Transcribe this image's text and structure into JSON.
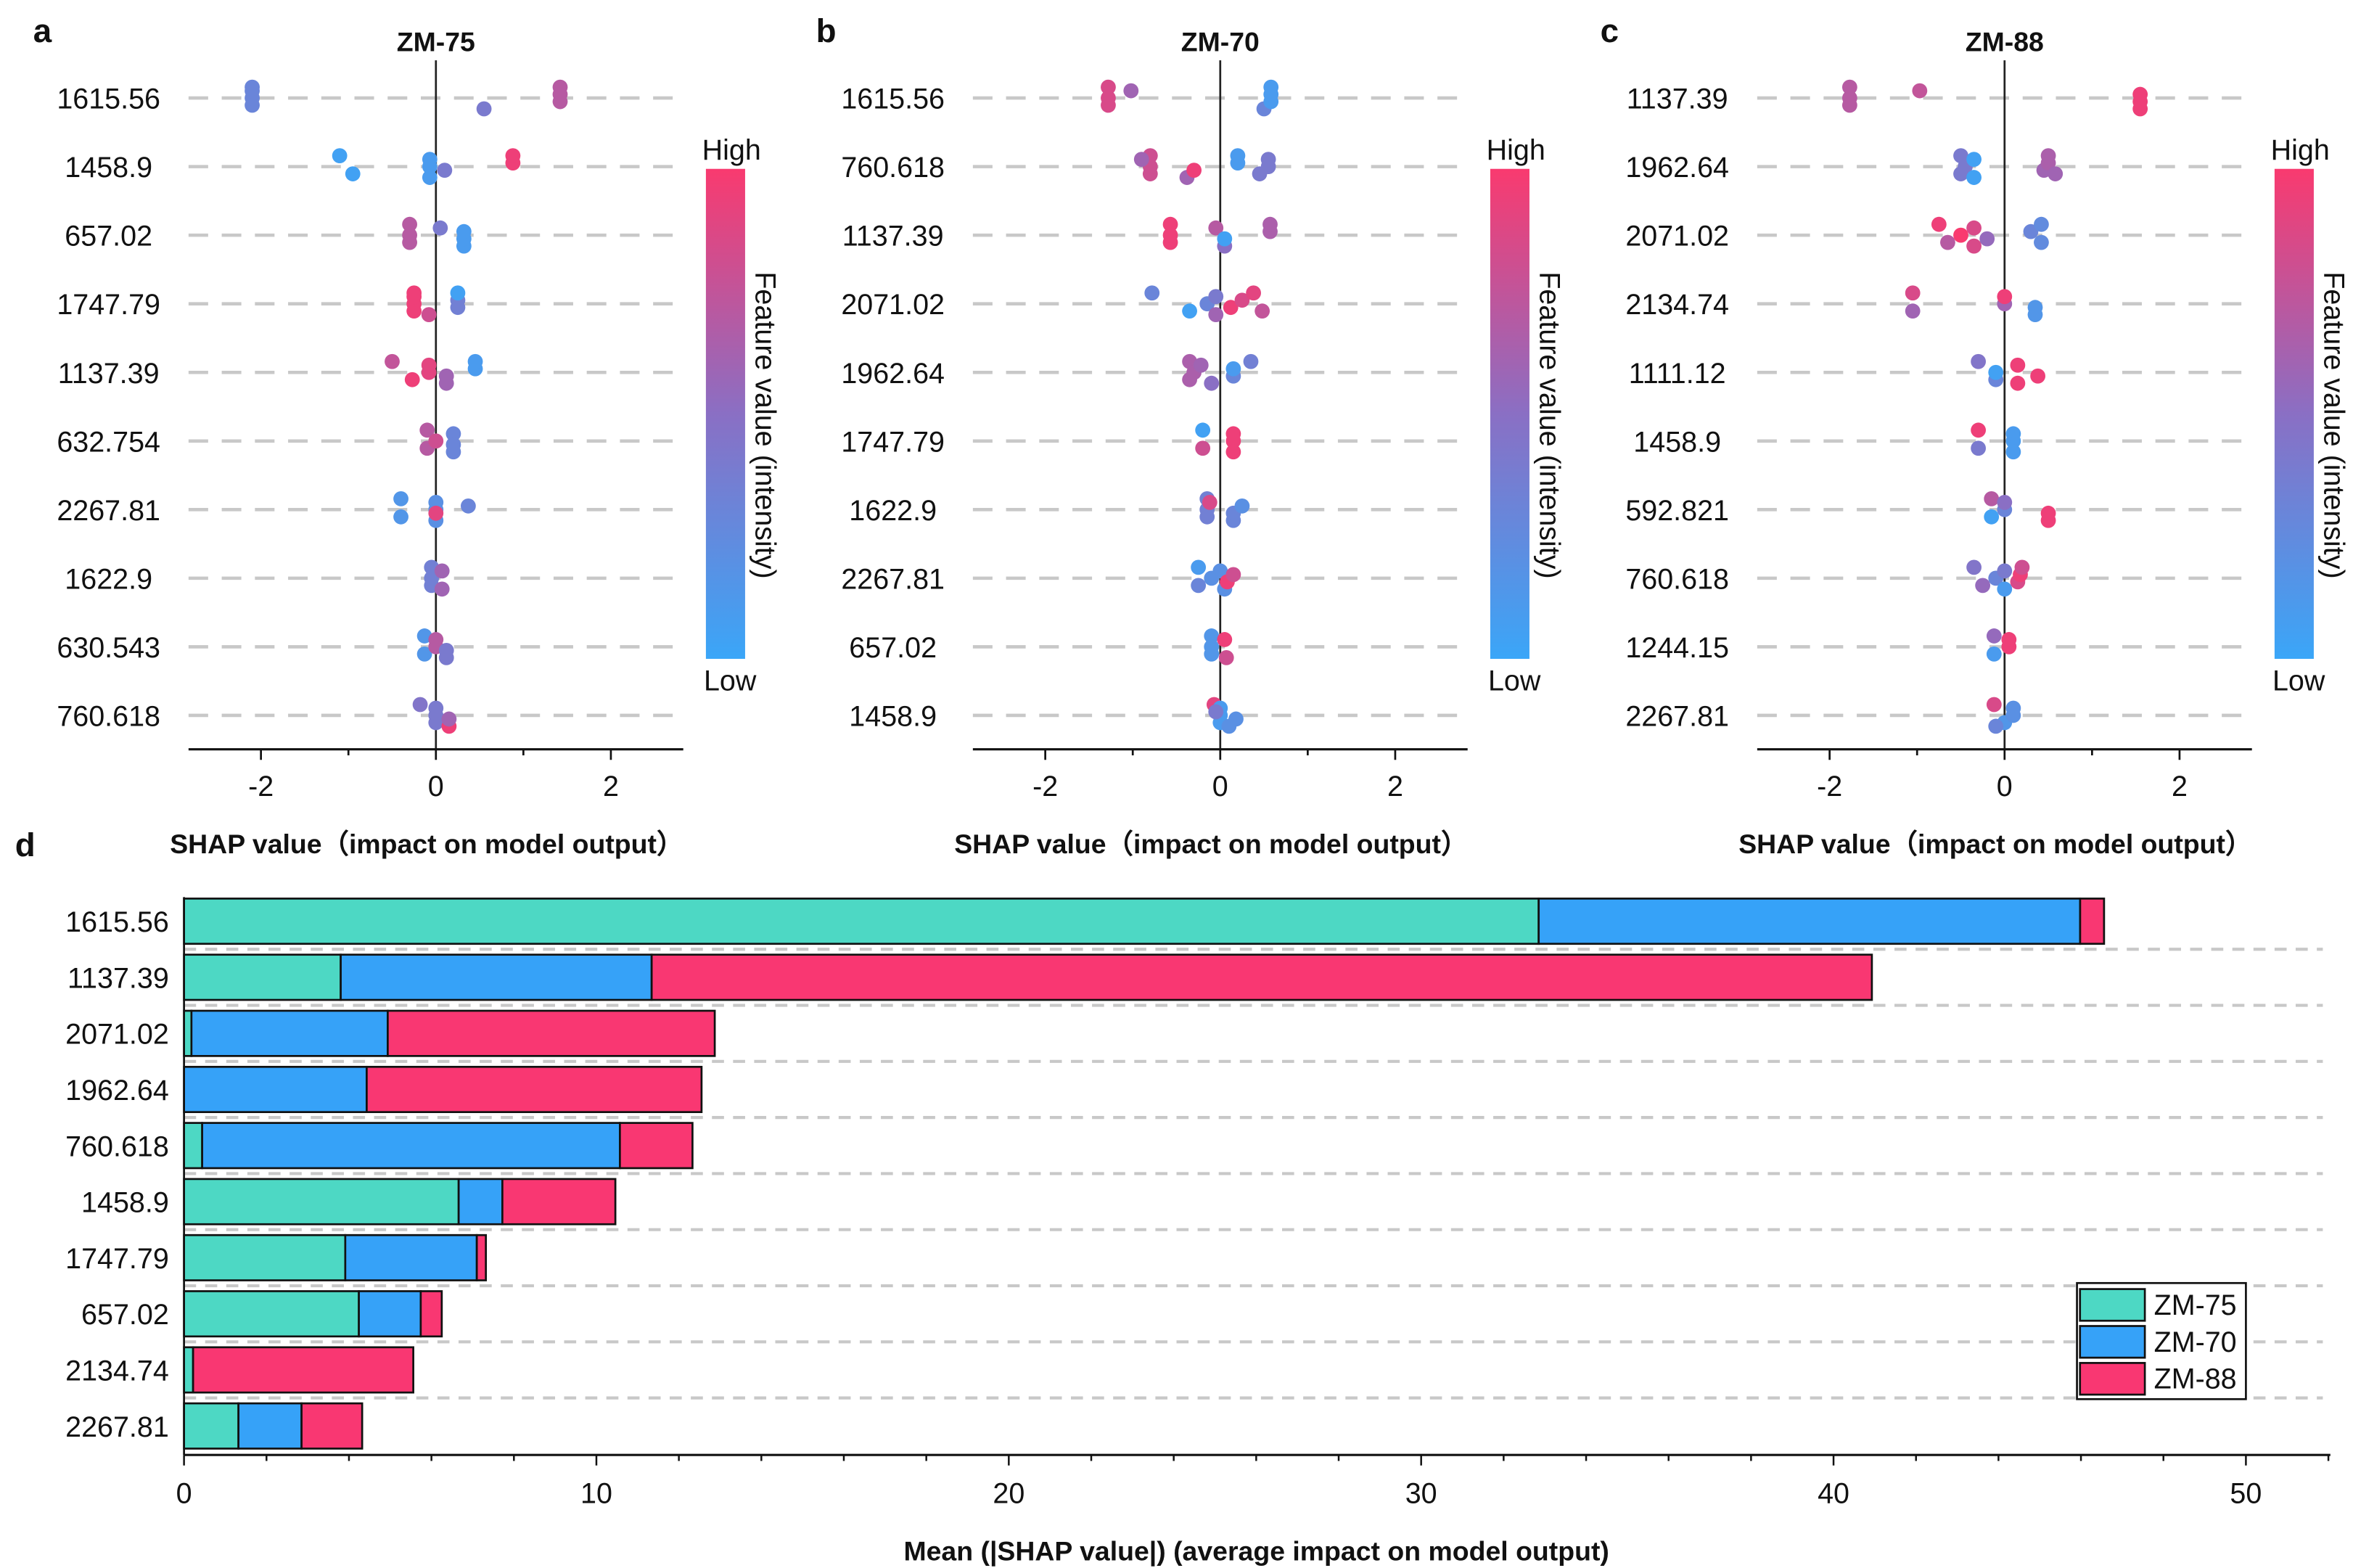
{
  "chart_data": [
    {
      "type": "scatter",
      "panel_letter": "a",
      "title": "ZM-75",
      "xlabel": "SHAP value（impact on  model output）",
      "xlim": [
        -2.8,
        2.8
      ],
      "xticks": [
        "-2",
        "0",
        "2"
      ],
      "colorbar": {
        "high": "High",
        "low": "Low",
        "label": "Feature value (intensity)"
      },
      "features": [
        {
          "name": "1615.56",
          "points": [
            [
              -2.1,
              0.3
            ],
            [
              -2.1,
              0.3
            ],
            [
              -2.1,
              0.3
            ],
            [
              -2.1,
              0.3
            ],
            [
              0.55,
              0.4
            ],
            [
              1.42,
              0.7
            ],
            [
              1.42,
              0.7
            ],
            [
              1.42,
              0.7
            ]
          ]
        },
        {
          "name": "1458.9",
          "points": [
            [
              -1.1,
              0.05
            ],
            [
              -0.95,
              0.05
            ],
            [
              -0.07,
              0.1
            ],
            [
              -0.07,
              0.1
            ],
            [
              -0.07,
              0.1
            ],
            [
              0.1,
              0.4
            ],
            [
              0.88,
              0.95
            ],
            [
              0.88,
              0.95
            ]
          ]
        },
        {
          "name": "657.02",
          "points": [
            [
              -0.3,
              0.7
            ],
            [
              -0.3,
              0.7
            ],
            [
              -0.3,
              0.7
            ],
            [
              0.05,
              0.4
            ],
            [
              0.32,
              0.1
            ],
            [
              0.32,
              0.1
            ],
            [
              0.32,
              0.1
            ]
          ]
        },
        {
          "name": "1747.79",
          "points": [
            [
              -0.25,
              0.95
            ],
            [
              -0.25,
              0.95
            ],
            [
              -0.25,
              0.95
            ],
            [
              -0.25,
              0.95
            ],
            [
              -0.08,
              0.8
            ],
            [
              0.25,
              0.35
            ],
            [
              0.25,
              0.35
            ],
            [
              0.25,
              0.05
            ]
          ]
        },
        {
          "name": "1137.39",
          "points": [
            [
              -0.5,
              0.75
            ],
            [
              -0.27,
              0.95
            ],
            [
              -0.08,
              0.9
            ],
            [
              -0.08,
              0.9
            ],
            [
              0.12,
              0.6
            ],
            [
              0.12,
              0.6
            ],
            [
              0.45,
              0.1
            ],
            [
              0.45,
              0.1
            ]
          ]
        },
        {
          "name": "632.754",
          "points": [
            [
              -0.1,
              0.7
            ],
            [
              -0.1,
              0.7
            ],
            [
              0,
              0.8
            ],
            [
              0.2,
              0.3
            ],
            [
              0.2,
              0.3
            ],
            [
              0.2,
              0.3
            ]
          ]
        },
        {
          "name": "2267.81",
          "points": [
            [
              -0.4,
              0.15
            ],
            [
              -0.4,
              0.15
            ],
            [
              0,
              0.2
            ],
            [
              0,
              0.2
            ],
            [
              0,
              0.2
            ],
            [
              0,
              0.9
            ],
            [
              0.37,
              0.3
            ]
          ]
        },
        {
          "name": "1622.9",
          "points": [
            [
              -0.05,
              0.35
            ],
            [
              -0.05,
              0.35
            ],
            [
              -0.05,
              0.35
            ],
            [
              0.07,
              0.6
            ],
            [
              0.07,
              0.6
            ]
          ]
        },
        {
          "name": "630.543",
          "points": [
            [
              -0.13,
              0.15
            ],
            [
              -0.13,
              0.15
            ],
            [
              0,
              0.7
            ],
            [
              0,
              0.7
            ],
            [
              0.12,
              0.4
            ],
            [
              0.12,
              0.4
            ]
          ]
        },
        {
          "name": "760.618",
          "points": [
            [
              -0.18,
              0.45
            ],
            [
              0,
              0.4
            ],
            [
              0,
              0.4
            ],
            [
              0,
              0.4
            ],
            [
              0.15,
              0.95
            ],
            [
              0.15,
              0.6
            ]
          ]
        }
      ]
    },
    {
      "type": "scatter",
      "panel_letter": "b",
      "title": "ZM-70",
      "xlabel": "SHAP value（impact on  model output）",
      "xlim": [
        -2.8,
        2.8
      ],
      "xticks": [
        "-2",
        "0",
        "2"
      ],
      "colorbar": {
        "high": "High",
        "low": "Low",
        "label": "Feature value (intensity)"
      },
      "features": [
        {
          "name": "1615.56",
          "points": [
            [
              -1.28,
              0.85
            ],
            [
              -1.28,
              0.85
            ],
            [
              -1.28,
              0.85
            ],
            [
              -1.02,
              0.6
            ],
            [
              0.5,
              0.3
            ],
            [
              0.58,
              0.1
            ],
            [
              0.58,
              0.1
            ],
            [
              0.58,
              0.1
            ]
          ]
        },
        {
          "name": "760.618",
          "points": [
            [
              -0.8,
              0.8
            ],
            [
              -0.8,
              0.8
            ],
            [
              -0.8,
              0.8
            ],
            [
              -0.9,
              0.6
            ],
            [
              -0.38,
              0.6
            ],
            [
              -0.3,
              0.95
            ],
            [
              0.2,
              0.1
            ],
            [
              0.2,
              0.1
            ],
            [
              0.45,
              0.4
            ],
            [
              0.55,
              0.4
            ],
            [
              0.55,
              0.4
            ]
          ]
        },
        {
          "name": "1137.39",
          "points": [
            [
              -0.57,
              0.95
            ],
            [
              -0.57,
              0.95
            ],
            [
              -0.57,
              0.95
            ],
            [
              -0.05,
              0.7
            ],
            [
              0.05,
              0.5
            ],
            [
              0.05,
              0.05
            ],
            [
              0.57,
              0.65
            ],
            [
              0.57,
              0.65
            ]
          ]
        },
        {
          "name": "2071.02",
          "points": [
            [
              -0.78,
              0.3
            ],
            [
              -0.35,
              0.05
            ],
            [
              -0.15,
              0.3
            ],
            [
              -0.05,
              0.4
            ],
            [
              -0.05,
              0.6
            ],
            [
              0.12,
              0.95
            ],
            [
              0.25,
              0.85
            ],
            [
              0.38,
              0.9
            ],
            [
              0.48,
              0.75
            ]
          ]
        },
        {
          "name": "1962.64",
          "points": [
            [
              -0.35,
              0.65
            ],
            [
              -0.35,
              0.65
            ],
            [
              -0.3,
              0.65
            ],
            [
              -0.22,
              0.6
            ],
            [
              -0.1,
              0.5
            ],
            [
              0.15,
              0.3
            ],
            [
              0.15,
              0.1
            ],
            [
              0.35,
              0.35
            ]
          ]
        },
        {
          "name": "1747.79",
          "points": [
            [
              -0.2,
              0.05
            ],
            [
              -0.2,
              0.8
            ],
            [
              0.15,
              0.95
            ],
            [
              0.15,
              0.95
            ],
            [
              0.15,
              0.95
            ]
          ]
        },
        {
          "name": "1622.9",
          "points": [
            [
              -0.15,
              0.35
            ],
            [
              -0.15,
              0.35
            ],
            [
              -0.15,
              0.35
            ],
            [
              -0.12,
              0.85
            ],
            [
              0.15,
              0.3
            ],
            [
              0.15,
              0.3
            ],
            [
              0.25,
              0.2
            ]
          ]
        },
        {
          "name": "2267.81",
          "points": [
            [
              -0.25,
              0.1
            ],
            [
              -0.25,
              0.3
            ],
            [
              -0.1,
              0.2
            ],
            [
              0,
              0.2
            ],
            [
              0.05,
              0.2
            ],
            [
              0.08,
              0.95
            ],
            [
              0.15,
              0.8
            ]
          ]
        },
        {
          "name": "657.02",
          "points": [
            [
              -0.1,
              0.15
            ],
            [
              -0.1,
              0.15
            ],
            [
              -0.1,
              0.15
            ],
            [
              0.05,
              0.95
            ],
            [
              0.07,
              0.8
            ]
          ]
        },
        {
          "name": "1458.9",
          "points": [
            [
              -0.07,
              0.9
            ],
            [
              0,
              0.1
            ],
            [
              0,
              0.1
            ],
            [
              0,
              0.1
            ],
            [
              0.1,
              0.2
            ],
            [
              0.18,
              0.2
            ],
            [
              -0.05,
              0.4
            ]
          ]
        }
      ]
    },
    {
      "type": "scatter",
      "panel_letter": "c",
      "title": "ZM-88",
      "xlabel": "SHAP value（impact on  model output）",
      "xlim": [
        -2.8,
        2.8
      ],
      "xticks": [
        "-2",
        "0",
        "2"
      ],
      "colorbar": {
        "high": "High",
        "low": "Low",
        "label": "Feature value (intensity)"
      },
      "features": [
        {
          "name": "1137.39",
          "points": [
            [
              -1.77,
              0.7
            ],
            [
              -1.77,
              0.7
            ],
            [
              -1.77,
              0.7
            ],
            [
              -0.97,
              0.75
            ],
            [
              1.55,
              0.95
            ],
            [
              1.55,
              0.95
            ],
            [
              1.55,
              0.95
            ]
          ]
        },
        {
          "name": "1962.64",
          "points": [
            [
              -0.5,
              0.4
            ],
            [
              -0.5,
              0.4
            ],
            [
              -0.45,
              0.4
            ],
            [
              -0.35,
              0.05
            ],
            [
              -0.35,
              0.05
            ],
            [
              0.45,
              0.6
            ],
            [
              0.5,
              0.65
            ],
            [
              0.5,
              0.65
            ],
            [
              0.58,
              0.6
            ]
          ]
        },
        {
          "name": "2071.02",
          "points": [
            [
              -0.75,
              0.95
            ],
            [
              -0.65,
              0.7
            ],
            [
              -0.5,
              1
            ],
            [
              -0.35,
              0.85
            ],
            [
              -0.35,
              0.85
            ],
            [
              -0.2,
              0.55
            ],
            [
              0.3,
              0.3
            ],
            [
              0.42,
              0.25
            ],
            [
              0.42,
              0.25
            ]
          ]
        },
        {
          "name": "2134.74",
          "points": [
            [
              -1.05,
              0.85
            ],
            [
              -1.05,
              0.6
            ],
            [
              0,
              0.6
            ],
            [
              0,
              0.95
            ],
            [
              0.35,
              0.15
            ],
            [
              0.35,
              0.15
            ]
          ]
        },
        {
          "name": "1111.12",
          "points": [
            [
              -0.3,
              0.45
            ],
            [
              -0.1,
              0.3
            ],
            [
              -0.1,
              0.05
            ],
            [
              0.15,
              0.95
            ],
            [
              0.15,
              0.95
            ],
            [
              0.38,
              0.95
            ]
          ]
        },
        {
          "name": "1458.9",
          "points": [
            [
              -0.3,
              0.95
            ],
            [
              -0.3,
              0.4
            ],
            [
              0.1,
              0.1
            ],
            [
              0.1,
              0.1
            ],
            [
              0.1,
              0.1
            ]
          ]
        },
        {
          "name": "592.821",
          "points": [
            [
              -0.15,
              0.7
            ],
            [
              -0.15,
              0.05
            ],
            [
              0,
              0.3
            ],
            [
              0,
              0.5
            ],
            [
              0.5,
              0.95
            ],
            [
              0.5,
              0.95
            ]
          ]
        },
        {
          "name": "760.618",
          "points": [
            [
              -0.35,
              0.45
            ],
            [
              -0.25,
              0.55
            ],
            [
              -0.1,
              0.3
            ],
            [
              0,
              0.4
            ],
            [
              0,
              0.1
            ],
            [
              0.15,
              0.85
            ],
            [
              0.18,
              0.95
            ],
            [
              0.2,
              0.8
            ]
          ]
        },
        {
          "name": "1244.15",
          "points": [
            [
              -0.12,
              0.55
            ],
            [
              -0.12,
              0.1
            ],
            [
              0.05,
              0.95
            ],
            [
              0.05,
              0.95
            ]
          ]
        },
        {
          "name": "2267.81",
          "points": [
            [
              -0.12,
              0.85
            ],
            [
              0,
              0.15
            ],
            [
              0.1,
              0.2
            ],
            [
              0.1,
              0.2
            ],
            [
              -0.1,
              0.3
            ]
          ]
        }
      ]
    },
    {
      "type": "bar",
      "stacked": true,
      "orientation": "horizontal",
      "panel_letter": "d",
      "xlabel": "Mean (|SHAP value|) (average impact on model output)",
      "xlim": [
        0,
        52
      ],
      "xticks": [
        "0",
        "10",
        "20",
        "30",
        "40",
        "50"
      ],
      "legend_position": "bottom-right",
      "categories": [
        "1615.56",
        "1137.39",
        "2071.02",
        "1962.64",
        "760.618",
        "1458.9",
        "1747.79",
        "657.02",
        "2134.74",
        "2267.81"
      ],
      "series": [
        {
          "name": "ZM-75",
          "color": "#4dd8c4",
          "values": [
            32.85,
            3.8,
            0.18,
            0.0,
            0.44,
            6.66,
            3.91,
            4.24,
            0.22,
            1.32
          ]
        },
        {
          "name": "ZM-70",
          "color": "#36a2f8",
          "values": [
            13.13,
            7.54,
            4.76,
            4.43,
            10.13,
            1.06,
            3.19,
            1.5,
            0.0,
            1.53
          ]
        },
        {
          "name": "ZM-88",
          "color": "#f93772",
          "values": [
            0.58,
            29.59,
            7.93,
            8.12,
            1.76,
            2.74,
            0.22,
            0.51,
            5.34,
            1.47
          ]
        }
      ]
    }
  ],
  "colors": {
    "low": "#3aa6f8",
    "mid": "#8a6fc4",
    "high": "#f93a6f"
  }
}
